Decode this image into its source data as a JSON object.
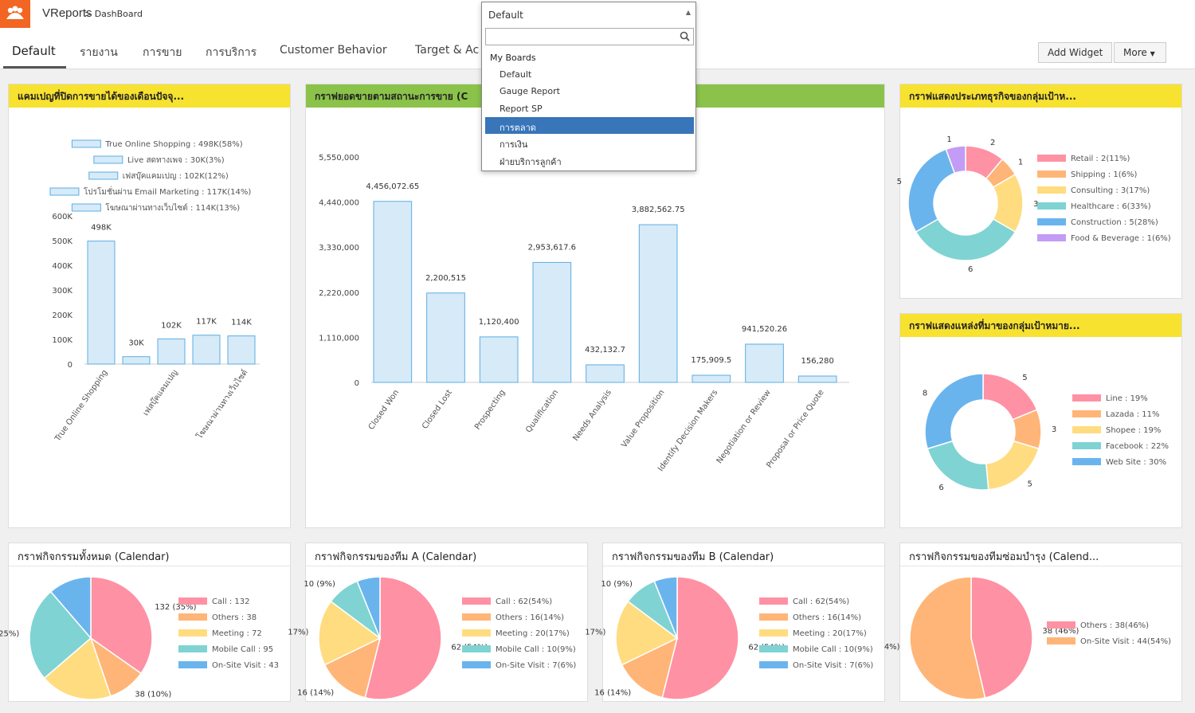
{
  "app": {
    "name": "VReports",
    "breadcrumb": "> DashBoard",
    "logo_icon": "people-icon",
    "brand_color": "#f26522"
  },
  "tabs": [
    {
      "label": "Default"
    },
    {
      "label": "รายงาน"
    },
    {
      "label": "การขาย"
    },
    {
      "label": "การบริการ"
    },
    {
      "label": "Customer Behavior"
    },
    {
      "label": "Target & Ac"
    }
  ],
  "toolbar": {
    "add_widget": "Add Widget",
    "more": "More"
  },
  "dropdown": {
    "value": "Default",
    "group": "My Boards",
    "items": [
      "Default",
      "Gauge Report",
      "Report SP",
      "การตลาด",
      "การเงิน",
      "ฝ่ายบริการลูกค้า"
    ],
    "selected": "การตลาด"
  },
  "panels": {
    "p1": {
      "title": "แคมเปญที่ปิดการขายได้ของเดือนปัจจุ..."
    },
    "p2": {
      "title": "กราฟยอดขายตามสถานะการขาย (C"
    },
    "p3": {
      "title": "กราฟแสดงประเภทธุรกิจของกลุ่มเป้าห..."
    },
    "p4": {
      "title": "กราฟแสดงแหล่งที่มาของกลุ่มเป้าหมาย..."
    },
    "p5": {
      "title": "กราฟกิจกรรมทั้งหมด (Calendar)"
    },
    "p6": {
      "title": "กราฟกิจกรรมของทีม A (Calendar)"
    },
    "p7": {
      "title": "กราฟกิจกรรมของทีม B (Calendar)"
    },
    "p8": {
      "title": "กราฟกิจกรรมของทีมซ่อมบำรุง (Calend..."
    }
  },
  "chart_data": [
    {
      "id": "p1",
      "type": "bar",
      "categories": [
        "True Online Shopping",
        "Live สดทางเพจ",
        "เฟสบุ๊คแคมเปญ",
        "โปรโมชั่นผ่าน Email Marketing",
        "โฆษณาผ่านทางเว็บไซต์"
      ],
      "values": [
        498,
        30,
        102,
        117,
        114
      ],
      "bar_labels": [
        "498K",
        "30K",
        "102K",
        "117K",
        "114K"
      ],
      "xticks": [
        "True Online Shopping",
        "",
        "เฟสบุ๊คแคมเปญ",
        "",
        "โฆษณาผ่านทางเว็บไซต์"
      ],
      "yticks": [
        "0",
        "100K",
        "200K",
        "300K",
        "400K",
        "500K",
        "600K"
      ],
      "ylim": [
        0,
        600
      ],
      "legend": [
        "True Online Shopping : 498K(58%)",
        "Live สดทางเพจ : 30K(3%)",
        "เฟสบุ๊คแคมเปญ : 102K(12%)",
        "โปรโมชั่นผ่าน Email Marketing : 117K(14%)",
        "โฆษณาผ่านทางเว็บไซต์ : 114K(13%)"
      ],
      "legend_placement": "top"
    },
    {
      "id": "p2",
      "type": "bar",
      "categories": [
        "Closed Won",
        "Closed Lost",
        "Prospecting",
        "Qualification",
        "Needs Analysis",
        "Value Proposition",
        "Identify Decision Makers",
        "Negotiation or Review",
        "Proposal or Price Quote"
      ],
      "values": [
        4456072.65,
        2200515,
        1120400,
        2953617.6,
        432132.7,
        3882562.75,
        175909.5,
        941520.26,
        156280
      ],
      "bar_labels": [
        "4,456,072.65",
        "2,200,515",
        "1,120,400",
        "2,953,617.6",
        "432,132.7",
        "3,882,562.75",
        "175,909.5",
        "941,520.26",
        "156,280"
      ],
      "yticks": [
        "0",
        "1,110,000",
        "2,220,000",
        "3,330,000",
        "4,440,000",
        "5,550,000"
      ],
      "ylim": [
        0,
        5550000
      ]
    },
    {
      "id": "p3",
      "type": "pie",
      "donut": true,
      "values": [
        2,
        1,
        3,
        6,
        5,
        1
      ],
      "slice_labels": [
        "2",
        "1",
        "3",
        "6",
        "5",
        "1"
      ],
      "colors": [
        "#ff91a4",
        "#ffb577",
        "#ffdc80",
        "#7fd3d3",
        "#6ab4ee",
        "#c29cf5"
      ],
      "legend": [
        "Retail : 2(11%)",
        "Shipping : 1(6%)",
        "Consulting : 3(17%)",
        "Healthcare : 6(33%)",
        "Construction : 5(28%)",
        "Food & Beverage : 1(6%)"
      ],
      "legend_placement": "right"
    },
    {
      "id": "p4",
      "type": "pie",
      "donut": true,
      "values": [
        19,
        11,
        19,
        22,
        30
      ],
      "slice_labels": [
        "5",
        "3",
        "5",
        "6",
        "8"
      ],
      "colors": [
        "#ff91a4",
        "#ffb577",
        "#ffdc80",
        "#7fd3d3",
        "#6ab4ee"
      ],
      "legend": [
        "Line : 19%",
        "Lazada : 11%",
        "Shopee : 19%",
        "Facebook : 22%",
        "Web Site : 30%"
      ],
      "legend_placement": "right"
    },
    {
      "id": "p5",
      "type": "pie",
      "donut": false,
      "values": [
        132,
        38,
        72,
        95,
        43
      ],
      "slice_labels": [
        "132 (35%)",
        "38 (10%)",
        "",
        "(25%)",
        ""
      ],
      "colors": [
        "#ff91a4",
        "#ffb577",
        "#ffdc80",
        "#7fd3d3",
        "#6ab4ee"
      ],
      "legend": [
        "Call : 132",
        "Others : 38",
        "Meeting : 72",
        "Mobile Call : 95",
        "On-Site Visit : 43"
      ],
      "legend_placement": "right"
    },
    {
      "id": "p6",
      "type": "pie",
      "donut": false,
      "values": [
        62,
        16,
        20,
        10,
        7
      ],
      "slice_labels": [
        "62 (54%)",
        "16 (14%)",
        "17%)",
        "10 (9%)",
        ""
      ],
      "colors": [
        "#ff91a4",
        "#ffb577",
        "#ffdc80",
        "#7fd3d3",
        "#6ab4ee"
      ],
      "legend": [
        "Call : 62(54%)",
        "Others : 16(14%)",
        "Meeting : 20(17%)",
        "Mobile Call : 10(9%)",
        "On-Site Visit : 7(6%)"
      ],
      "legend_placement": "right"
    },
    {
      "id": "p7",
      "type": "pie",
      "donut": false,
      "values": [
        62,
        16,
        20,
        10,
        7
      ],
      "slice_labels": [
        "62 (54%)",
        "16 (14%)",
        "17%)",
        "10 (9%)",
        ""
      ],
      "colors": [
        "#ff91a4",
        "#ffb577",
        "#ffdc80",
        "#7fd3d3",
        "#6ab4ee"
      ],
      "legend": [
        "Call : 62(54%)",
        "Others : 16(14%)",
        "Meeting : 20(17%)",
        "Mobile Call : 10(9%)",
        "On-Site Visit : 7(6%)"
      ],
      "legend_placement": "right"
    },
    {
      "id": "p8",
      "type": "pie",
      "donut": false,
      "values": [
        38,
        44
      ],
      "slice_labels": [
        "38 (46%)",
        "4%)"
      ],
      "colors": [
        "#ff91a4",
        "#ffb577"
      ],
      "legend": [
        "Others : 38(46%)",
        "On-Site Visit : 44(54%)"
      ],
      "legend_placement": "right"
    }
  ]
}
